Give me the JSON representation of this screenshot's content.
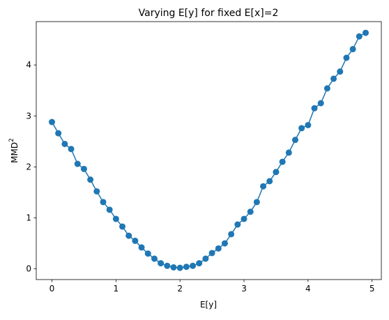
{
  "chart_data": {
    "type": "line",
    "title": "Varying E[y] for fixed E[x]=2",
    "xlabel": "E[y]",
    "ylabel": "MMD",
    "ylabel_superscript": "2",
    "xlim": [
      -0.245,
      5.145
    ],
    "ylim": [
      -0.21,
      4.85
    ],
    "xticks": [
      0,
      1,
      2,
      3,
      4,
      5
    ],
    "yticks": [
      0,
      1,
      2,
      3,
      4
    ],
    "grid": false,
    "color": "#1f77b4",
    "series": [
      {
        "x": [
          0.0,
          0.1,
          0.2,
          0.3,
          0.4,
          0.5,
          0.6,
          0.7,
          0.8,
          0.9,
          1.0,
          1.1,
          1.2,
          1.3,
          1.4,
          1.5,
          1.6,
          1.7,
          1.8,
          1.9,
          2.0,
          2.1,
          2.2,
          2.3,
          2.4,
          2.5,
          2.6,
          2.7,
          2.8,
          2.9,
          3.0,
          3.1,
          3.2,
          3.3,
          3.4,
          3.5,
          3.6,
          3.7,
          3.8,
          3.9,
          4.0,
          4.1,
          4.2,
          4.3,
          4.4,
          4.5,
          4.6,
          4.7,
          4.8,
          4.9
        ],
        "y": [
          2.88,
          2.66,
          2.45,
          2.35,
          2.06,
          1.96,
          1.75,
          1.52,
          1.31,
          1.16,
          0.98,
          0.83,
          0.65,
          0.55,
          0.42,
          0.3,
          0.2,
          0.11,
          0.06,
          0.03,
          0.02,
          0.04,
          0.06,
          0.11,
          0.2,
          0.31,
          0.4,
          0.5,
          0.68,
          0.87,
          0.98,
          1.12,
          1.31,
          1.62,
          1.72,
          1.9,
          2.1,
          2.28,
          2.53,
          2.76,
          2.82,
          3.15,
          3.25,
          3.54,
          3.73,
          3.87,
          4.14,
          4.31,
          4.56,
          4.63
        ]
      }
    ]
  }
}
